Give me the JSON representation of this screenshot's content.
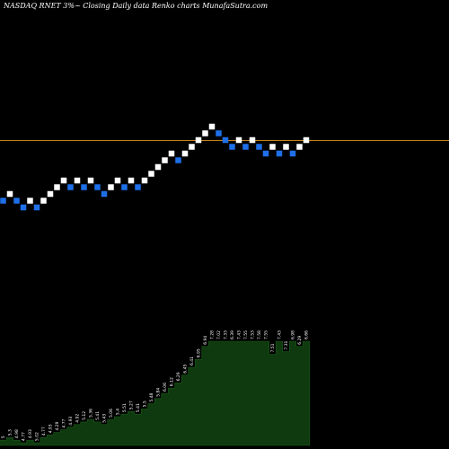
{
  "header": {
    "title": "NASDAQ RNET 3%~   Closing Daily data  Renko  charts MunafaSutra.com"
  },
  "colors": {
    "background": "#000000",
    "up_brick": "#ffffff",
    "down_brick": "#1e6fe8",
    "reference_line": "#c8841a",
    "volume_fill": "#0f3a0f",
    "volume_edge": "#1a5a1a",
    "label_text": "#ffffff"
  },
  "chart_data": {
    "type": "renko",
    "price_axis_visible": false,
    "reference_line_level": 10,
    "bricks": [
      {
        "dir": "down",
        "level": 1
      },
      {
        "dir": "up",
        "level": 2
      },
      {
        "dir": "down",
        "level": 1
      },
      {
        "dir": "down",
        "level": 0
      },
      {
        "dir": "up",
        "level": 1
      },
      {
        "dir": "down",
        "level": 0
      },
      {
        "dir": "up",
        "level": 1
      },
      {
        "dir": "up",
        "level": 2
      },
      {
        "dir": "up",
        "level": 3
      },
      {
        "dir": "up",
        "level": 4
      },
      {
        "dir": "down",
        "level": 3
      },
      {
        "dir": "up",
        "level": 4
      },
      {
        "dir": "down",
        "level": 3
      },
      {
        "dir": "up",
        "level": 4
      },
      {
        "dir": "down",
        "level": 3
      },
      {
        "dir": "down",
        "level": 2
      },
      {
        "dir": "up",
        "level": 3
      },
      {
        "dir": "up",
        "level": 4
      },
      {
        "dir": "down",
        "level": 3
      },
      {
        "dir": "up",
        "level": 4
      },
      {
        "dir": "down",
        "level": 3
      },
      {
        "dir": "up",
        "level": 4
      },
      {
        "dir": "up",
        "level": 5
      },
      {
        "dir": "up",
        "level": 6
      },
      {
        "dir": "up",
        "level": 7
      },
      {
        "dir": "up",
        "level": 8
      },
      {
        "dir": "down",
        "level": 7
      },
      {
        "dir": "up",
        "level": 8
      },
      {
        "dir": "up",
        "level": 9
      },
      {
        "dir": "up",
        "level": 10
      },
      {
        "dir": "up",
        "level": 11
      },
      {
        "dir": "up",
        "level": 12
      },
      {
        "dir": "down",
        "level": 11
      },
      {
        "dir": "down",
        "level": 10
      },
      {
        "dir": "down",
        "level": 9
      },
      {
        "dir": "up",
        "level": 10
      },
      {
        "dir": "down",
        "level": 9
      },
      {
        "dir": "up",
        "level": 10
      },
      {
        "dir": "down",
        "level": 9
      },
      {
        "dir": "down",
        "level": 8
      },
      {
        "dir": "up",
        "level": 9
      },
      {
        "dir": "down",
        "level": 8
      },
      {
        "dir": "up",
        "level": 9
      },
      {
        "dir": "down",
        "level": 8
      },
      {
        "dir": "up",
        "level": 9
      },
      {
        "dir": "up",
        "level": 10
      }
    ],
    "volume": [
      2,
      3,
      2,
      1,
      2,
      1,
      3,
      4,
      5,
      6,
      7,
      8,
      9,
      10,
      9,
      8,
      10,
      11,
      12,
      13,
      12,
      14,
      16,
      18,
      20,
      22,
      24,
      27,
      30,
      33,
      38,
      40,
      40,
      40,
      40,
      40,
      40,
      40,
      40,
      40,
      35,
      40,
      36,
      40,
      38,
      40
    ],
    "volume_max": 40,
    "brick_labels": [
      "5",
      "5.3",
      "4.98",
      "4.77",
      "4.93",
      "5.02",
      "4.77",
      "4.93",
      "4.29",
      "4.77",
      "4.93",
      "4.92",
      "5.12",
      "5.36",
      "5.41",
      "5.43",
      "5.06",
      "5.4",
      "5.51",
      "5.27",
      "5.41",
      "5.5",
      "5.48",
      "5.84",
      "6.06",
      "6.12",
      "6.29",
      "6.45",
      "6.41",
      "6.95",
      "6.94",
      "7.28",
      "7.02",
      "7.33",
      "6.39",
      "7.43",
      "7.55",
      "7.53",
      "7.58",
      "7.55",
      "7.51",
      "7.43",
      "7.31",
      "6.98",
      "6.29",
      "6.66"
    ],
    "legend": "none",
    "grid": false
  }
}
